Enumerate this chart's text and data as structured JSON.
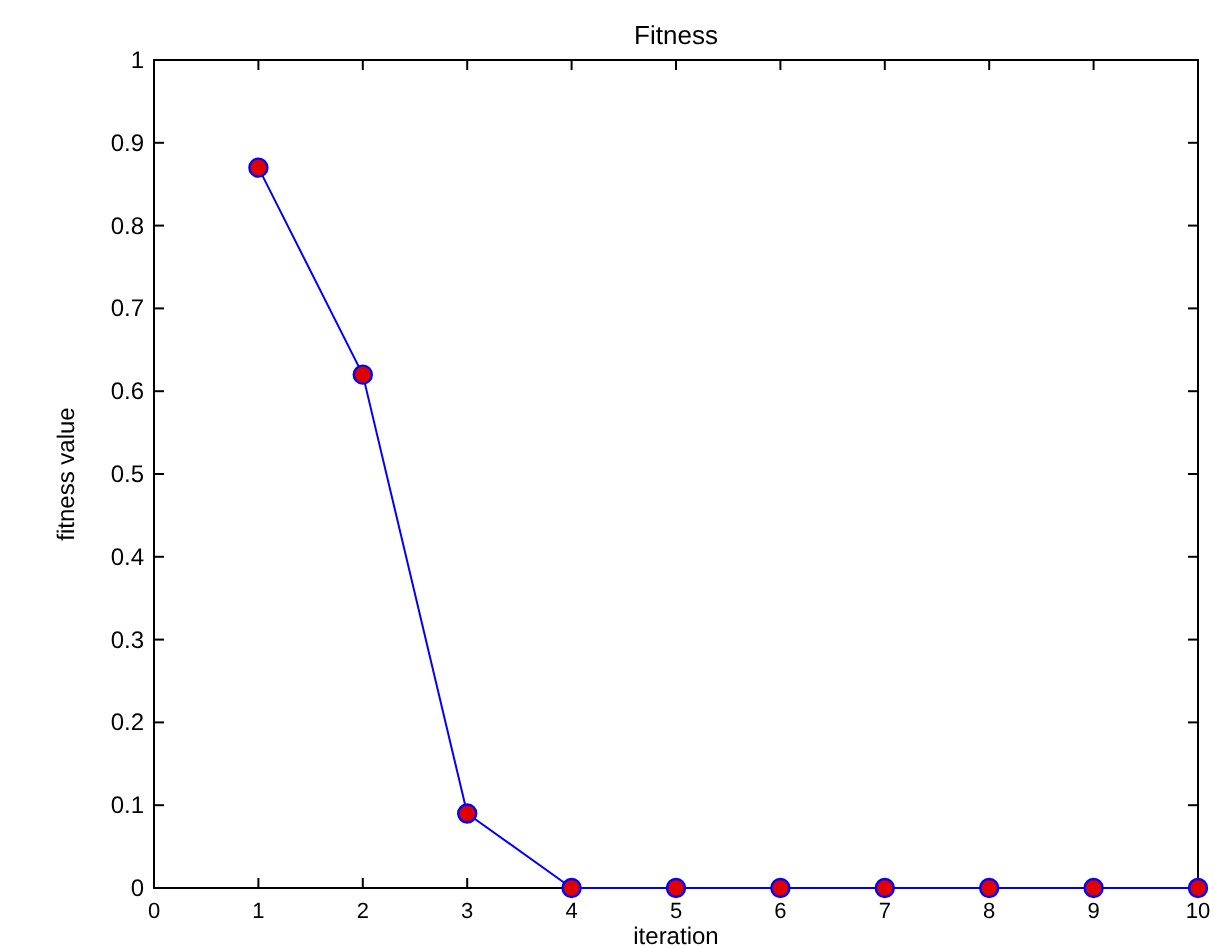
{
  "chart_data": {
    "type": "line",
    "title": "Fitness",
    "xlabel": "iteration",
    "ylabel": "fitness value",
    "x": [
      1,
      2,
      3,
      4,
      5,
      6,
      7,
      8,
      9,
      10
    ],
    "series": [
      {
        "color": "#0000ff",
        "values": [
          0.87,
          0.62,
          0.09,
          0,
          0,
          0,
          0,
          0,
          0,
          0
        ]
      }
    ],
    "xlim": [
      0,
      10
    ],
    "xticks": [
      0,
      1,
      2,
      3,
      4,
      5,
      6,
      7,
      8,
      9,
      10
    ],
    "ylim": [
      0,
      1
    ],
    "yticks": [
      0,
      0.1,
      0.2,
      0.3,
      0.4,
      0.5,
      0.6,
      0.7,
      0.8,
      0.9,
      1
    ],
    "marker": "circle",
    "grid": false,
    "line_style": "solid"
  }
}
